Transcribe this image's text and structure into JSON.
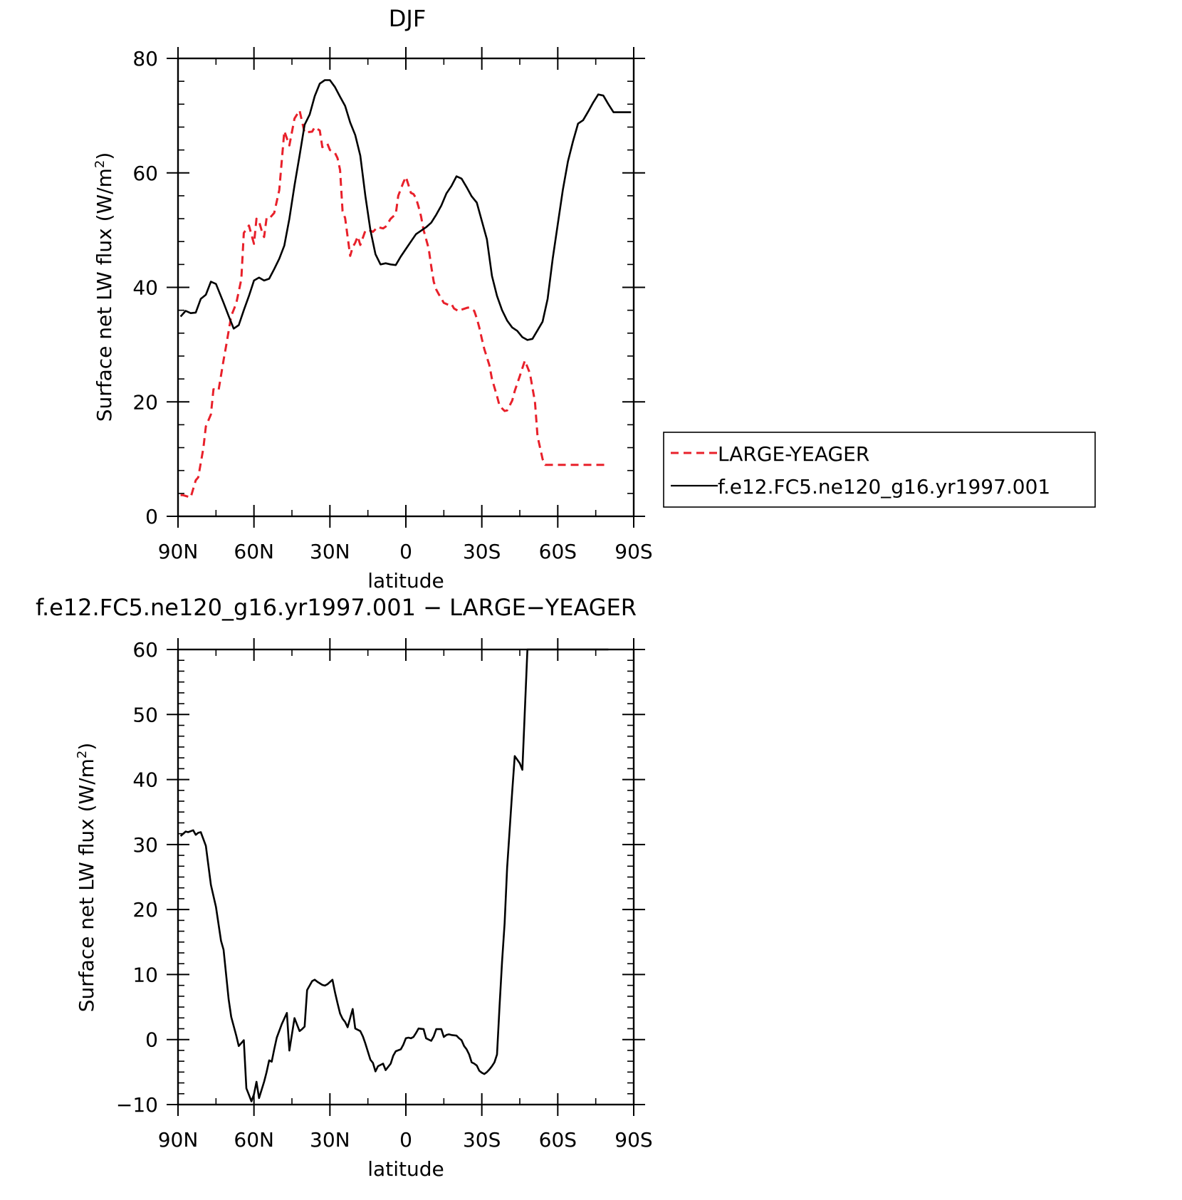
{
  "chart_data": [
    {
      "type": "line",
      "title": "DJF",
      "xlabel": "latitude",
      "ylabel": "Surface net LW flux (W/m",
      "ylabel_sup": "2",
      "ylabel_close": ")",
      "x_ticklabels": [
        "90N",
        "60N",
        "30N",
        "0",
        "30S",
        "60S",
        "90S"
      ],
      "x_ticks": [
        90,
        60,
        30,
        0,
        -30,
        -60,
        -90
      ],
      "xlim": [
        90,
        -90
      ],
      "ylim": [
        0,
        80
      ],
      "y_ticks": [
        0,
        20,
        40,
        60,
        80
      ],
      "legend_position": "right, outside plot",
      "series": [
        {
          "name": "LARGE-YEAGER",
          "color": "#e8202a",
          "dash": "dashed",
          "x": [
            89,
            88,
            85,
            83,
            82,
            80,
            79,
            77,
            76,
            74,
            72,
            71,
            69,
            67,
            65,
            64,
            62,
            60,
            59,
            58,
            57,
            56,
            55,
            54,
            52,
            50,
            48,
            46,
            44,
            42,
            40,
            39,
            37,
            36,
            34,
            33,
            31,
            30,
            28,
            27,
            26,
            25,
            24,
            22,
            21,
            20,
            19,
            18,
            16,
            15,
            13,
            11,
            10,
            9,
            8,
            6,
            4,
            3,
            1,
            0,
            -1,
            -2,
            -3,
            -4,
            -5,
            -6,
            -7,
            -9,
            -10,
            -11,
            -12,
            -13,
            -15,
            -17,
            -18,
            -19,
            -21,
            -22,
            -24,
            -25,
            -27,
            -28,
            -29,
            -30,
            -31,
            -33,
            -34,
            -36,
            -37,
            -39,
            -40,
            -42,
            -43,
            -45,
            -47,
            -49,
            -51,
            -52,
            -54,
            -55,
            -57,
            -59,
            -60,
            -62,
            -63,
            -65,
            -66,
            -67,
            -68,
            -69,
            -70,
            -71,
            -72,
            -73,
            -74,
            -75,
            -76,
            -77,
            -78,
            -79
          ],
          "y": [
            3.7,
            3.7,
            3.3,
            6.3,
            6.8,
            11.9,
            15.7,
            17.8,
            22.2,
            22.0,
            27.3,
            29.8,
            35.0,
            37.2,
            41.4,
            49.5,
            50.8,
            47.6,
            52.0,
            51.5,
            50.0,
            48.8,
            52.1,
            52.0,
            53.0,
            57.0,
            67.3,
            64.8,
            69.5,
            70.9,
            67.0,
            67.1,
            67.2,
            68.0,
            67.4,
            64.5,
            65.1,
            64.0,
            63.5,
            62.6,
            60.5,
            53.3,
            52.1,
            45.5,
            47.0,
            47.8,
            48.9,
            47.4,
            49.9,
            50.1,
            49.7,
            50.6,
            50.4,
            50.3,
            50.6,
            52.0,
            52.8,
            56.0,
            58.3,
            59.3,
            57.9,
            56.5,
            56.3,
            55.6,
            54.1,
            52.4,
            50.0,
            46.8,
            43.7,
            41.0,
            39.6,
            38.8,
            37.3,
            36.9,
            37.1,
            36.3,
            35.8,
            36.1,
            36.4,
            36.5,
            35.9,
            34.6,
            33.0,
            31.0,
            29.2,
            26.4,
            24.0,
            21.0,
            19.3,
            18.4,
            18.5,
            20.2,
            21.9,
            24.5,
            27.2,
            25.0,
            20.0,
            14.0,
            10.0,
            9.0,
            9.0,
            9.0,
            9.0,
            9.0,
            9.0,
            9.0,
            9.0,
            9.0,
            9.0,
            9.0,
            9.0,
            9.0,
            9.0,
            9.0,
            9.0,
            9.0,
            9.0,
            9.0,
            9.0,
            9.0
          ]
        },
        {
          "name": "f.e12.FC5.ne120_g16.yr1997.001",
          "color": "#000000",
          "dash": "solid",
          "x": [
            89,
            87,
            85,
            83,
            81,
            79,
            77,
            75,
            72,
            70,
            68,
            66,
            64,
            62,
            60,
            58,
            56,
            54,
            52,
            50,
            48,
            46,
            44,
            42,
            40,
            38,
            36,
            34,
            32,
            30,
            28,
            26,
            24,
            22,
            20,
            18,
            16,
            14,
            12,
            10,
            8,
            6,
            4,
            2,
            0,
            -2,
            -4,
            -6,
            -8,
            -10,
            -12,
            -14,
            -16,
            -18,
            -20,
            -22,
            -24,
            -26,
            -28,
            -30,
            -32,
            -34,
            -36,
            -38,
            -40,
            -42,
            -44,
            -46,
            -48,
            -50,
            -52,
            -54,
            -56,
            -58,
            -60,
            -62,
            -64,
            -66,
            -68,
            -70,
            -72,
            -74,
            -76,
            -78,
            -80,
            -82,
            -84,
            -86,
            -88,
            -89
          ],
          "y": [
            34.9,
            35.9,
            35.5,
            35.6,
            38.0,
            38.7,
            41.0,
            40.6,
            37.3,
            35.0,
            32.8,
            33.4,
            36.0,
            38.5,
            41.2,
            41.7,
            41.2,
            41.5,
            43.2,
            45.0,
            47.3,
            52.0,
            57.8,
            63.0,
            68.4,
            70.2,
            73.4,
            75.6,
            76.2,
            76.2,
            75.0,
            73.3,
            71.7,
            68.8,
            66.6,
            63.0,
            56.0,
            50.0,
            45.8,
            44.0,
            44.2,
            44.0,
            43.9,
            45.4,
            46.7,
            48.0,
            49.3,
            49.9,
            50.5,
            51.3,
            52.7,
            54.3,
            56.4,
            57.7,
            59.4,
            59.0,
            57.5,
            55.9,
            54.8,
            51.6,
            48.4,
            42.0,
            38.5,
            36.0,
            34.2,
            33.0,
            32.4,
            31.3,
            30.8,
            31.0,
            32.5,
            34.0,
            38.0,
            45.0,
            51.0,
            57.0,
            62.0,
            65.5,
            68.6,
            69.2,
            70.7,
            72.3,
            73.7,
            73.5,
            72.0,
            70.6,
            70.6,
            70.6,
            70.6,
            70.6
          ]
        }
      ]
    },
    {
      "type": "line",
      "title": "f.e12.FC5.ne120_g16.yr1997.001 − LARGE−YEAGER",
      "xlabel": "latitude",
      "ylabel": "Surface net LW flux (W/m",
      "ylabel_sup": "2",
      "ylabel_close": ")",
      "x_ticklabels": [
        "90N",
        "60N",
        "30N",
        "0",
        "30S",
        "60S",
        "90S"
      ],
      "x_ticks": [
        90,
        60,
        30,
        0,
        -30,
        -60,
        -90
      ],
      "xlim": [
        90,
        -90
      ],
      "ylim": [
        -10,
        60
      ],
      "y_ticks": [
        -10,
        0,
        10,
        20,
        30,
        40,
        50,
        60
      ],
      "y_ticklabels": [
        "−10",
        "0",
        "10",
        "20",
        "30",
        "40",
        "50",
        "60"
      ],
      "series": [
        {
          "name": "",
          "color": "#000000",
          "dash": "solid",
          "x": [
            89,
            87,
            86,
            84,
            83,
            82,
            81,
            79,
            77,
            75,
            73,
            72,
            70,
            69,
            67,
            66,
            64,
            63,
            62,
            61,
            60,
            59,
            58,
            56,
            55,
            54,
            53,
            52,
            51,
            49,
            47,
            46,
            44,
            42,
            41,
            40,
            39,
            37,
            36,
            35,
            33,
            32,
            31,
            29,
            28,
            27,
            26,
            25,
            24,
            23,
            21,
            20,
            18,
            17,
            16,
            14,
            13,
            12,
            11,
            9,
            8,
            6,
            5,
            4,
            2,
            1,
            0,
            -1,
            -2,
            -3,
            -4,
            -5,
            -7,
            -8,
            -10,
            -11,
            -12,
            -14,
            -15,
            -16,
            -17,
            -18,
            -20,
            -21,
            -22,
            -23,
            -24,
            -25,
            -26,
            -27,
            -28,
            -29,
            -30,
            -31,
            -32,
            -33,
            -34,
            -35,
            -36,
            -37,
            -38,
            -39,
            -40,
            -42,
            -43,
            -45,
            -46,
            -48,
            -49,
            -50,
            -52,
            -53,
            -55,
            -56,
            -57,
            -58,
            -59,
            -60,
            -61,
            -63,
            -64,
            -65,
            -66,
            -67,
            -68,
            -69,
            -70,
            -71,
            -72,
            -73,
            -75,
            -76,
            -77,
            -78,
            -79,
            -80
          ],
          "y": [
            31.3,
            32.0,
            31.9,
            32.2,
            31.5,
            31.8,
            31.9,
            29.8,
            23.8,
            20.4,
            15.2,
            13.8,
            6.2,
            3.5,
            0.6,
            -1.0,
            -0.1,
            -7.5,
            -8.5,
            -9.5,
            -8.4,
            -6.5,
            -9.0,
            -6.5,
            -5.0,
            -3.2,
            -3.4,
            -1.5,
            0.3,
            2.4,
            4.1,
            -1.7,
            3.3,
            1.3,
            1.6,
            2.0,
            7.6,
            9.0,
            9.2,
            8.9,
            8.4,
            8.3,
            8.5,
            9.2,
            7.3,
            5.6,
            4.0,
            3.2,
            2.7,
            1.9,
            4.7,
            1.7,
            1.3,
            0.5,
            -0.6,
            -3.1,
            -3.6,
            -4.9,
            -4.1,
            -3.7,
            -4.7,
            -3.7,
            -2.5,
            -1.8,
            -1.5,
            -0.8,
            0.2,
            0.3,
            0.2,
            0.4,
            1.0,
            1.7,
            1.6,
            0.2,
            -0.2,
            0.5,
            1.6,
            1.6,
            0.4,
            0.7,
            0.8,
            0.7,
            0.6,
            0.2,
            -0.1,
            -1.0,
            -1.5,
            -2.3,
            -3.5,
            -3.7,
            -4.0,
            -4.8,
            -5.1,
            -5.3,
            -5.0,
            -4.6,
            -4.1,
            -3.5,
            -2.3,
            5.2,
            12.0,
            17.9,
            26.4,
            38.1,
            43.6,
            42.5,
            41.5,
            60.0,
            60.0,
            60.0,
            60.0,
            60.0,
            60.0,
            60.0,
            60.0,
            60.0,
            60.0,
            60.0,
            60.0,
            60.0,
            60.0,
            60.0,
            60.0,
            60.0,
            60.0,
            60.0,
            60.0,
            60.0,
            60.0,
            60.0,
            60.0,
            60.0,
            60.0,
            60.0,
            60.0,
            60.0
          ]
        }
      ]
    }
  ]
}
